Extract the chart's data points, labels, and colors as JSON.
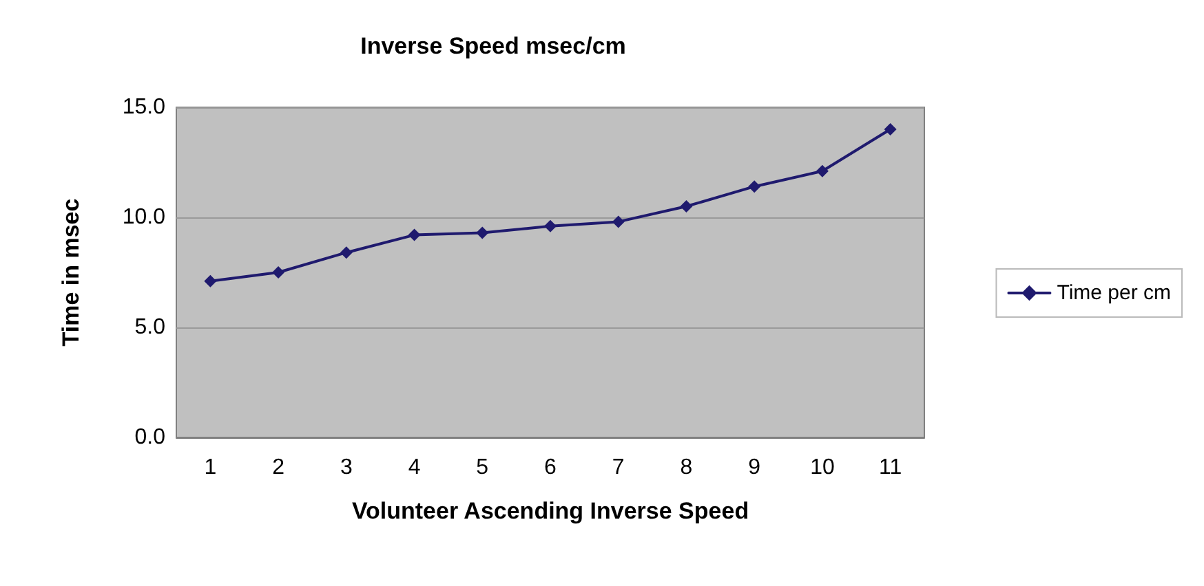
{
  "chart_data": {
    "type": "line",
    "title": "Inverse Speed msec/cm",
    "xlabel": "Volunteer Ascending Inverse Speed",
    "ylabel": "Time in msec",
    "categories": [
      "1",
      "2",
      "3",
      "4",
      "5",
      "6",
      "7",
      "8",
      "9",
      "10",
      "11"
    ],
    "series": [
      {
        "name": "Time per cm",
        "color": "#1f1a6e",
        "values": [
          7.1,
          7.5,
          8.4,
          9.2,
          9.3,
          9.6,
          9.8,
          10.5,
          11.4,
          12.1,
          14.0
        ]
      }
    ],
    "ylim": [
      0,
      15
    ],
    "yticks": [
      {
        "value": 0,
        "label": "0.0"
      },
      {
        "value": 5,
        "label": "5.0"
      },
      {
        "value": 10,
        "label": "10.0"
      },
      {
        "value": 15,
        "label": "15.0"
      }
    ],
    "grid": "y",
    "legend": "right",
    "marker": "diamond",
    "line_style": "solid"
  }
}
